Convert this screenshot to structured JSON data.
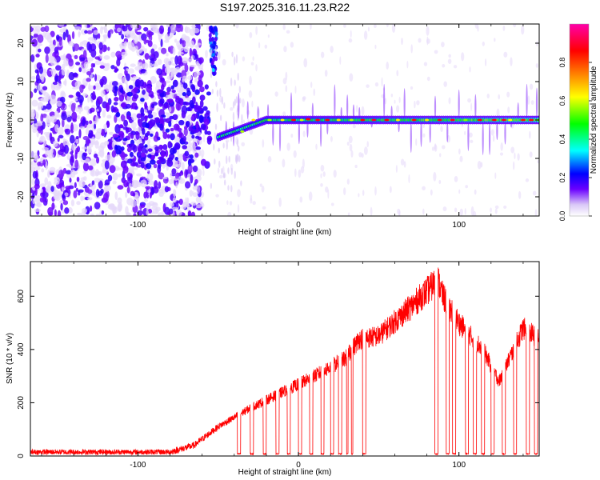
{
  "title": "S197.2025.316.11.23.R22",
  "chart_data": [
    {
      "type": "heatmap",
      "xlabel": "Height of straight line (km)",
      "ylabel": "Frequency (Hz)",
      "xlim": [
        -167,
        150
      ],
      "ylim": [
        -25,
        25
      ],
      "xticks": [
        -100,
        0,
        100
      ],
      "yticks": [
        -20,
        -10,
        0,
        10,
        20
      ],
      "xtick_labels": [
        "-100",
        "0",
        "100"
      ],
      "ytick_labels": [
        "-20",
        "-10",
        "0",
        "10",
        "20"
      ],
      "colorbar": {
        "label": "Normalized spectral amplitude",
        "range": [
          0,
          1
        ],
        "ticks": [
          0.0,
          0.2,
          0.4,
          0.6,
          0.8
        ],
        "tick_labels": [
          "0.0",
          "0.2",
          "0.4",
          "0.6",
          "0.8"
        ],
        "stops": [
          "#ffffff",
          "#d9c6f7",
          "#6a00ff",
          "#0000ff",
          "#00ffff",
          "#00ff00",
          "#ffff00",
          "#ff8000",
          "#ff0000",
          "#ff00aa"
        ]
      },
      "features": {
        "noise_region_km": [
          -167,
          -70
        ],
        "line_start_km": -50,
        "line_frequency_hz": 0,
        "high_freq_blob_km": -53,
        "high_freq_blob_hz": [
          12,
          24
        ]
      }
    },
    {
      "type": "line",
      "xlabel": "Height of straight line (km)",
      "ylabel": "SNR (10 * v/v)",
      "xlim": [
        -167,
        150
      ],
      "ylim": [
        0,
        730
      ],
      "xticks": [
        -100,
        0,
        100
      ],
      "yticks": [
        0,
        200,
        400,
        600
      ],
      "xtick_labels": [
        "-100",
        "0",
        "100"
      ],
      "ytick_labels": [
        "0",
        "200",
        "400",
        "600"
      ],
      "series_color": "#ff0000",
      "baseline_snr": 15,
      "trend": [
        {
          "x": -167,
          "y": 15
        },
        {
          "x": -80,
          "y": 15
        },
        {
          "x": -65,
          "y": 40
        },
        {
          "x": -50,
          "y": 110
        },
        {
          "x": -30,
          "y": 180
        },
        {
          "x": -10,
          "y": 240
        },
        {
          "x": 10,
          "y": 300
        },
        {
          "x": 30,
          "y": 370
        },
        {
          "x": 38,
          "y": 440
        },
        {
          "x": 50,
          "y": 450
        },
        {
          "x": 70,
          "y": 560
        },
        {
          "x": 87,
          "y": 660
        },
        {
          "x": 90,
          "y": 600
        },
        {
          "x": 100,
          "y": 500
        },
        {
          "x": 115,
          "y": 400
        },
        {
          "x": 125,
          "y": 280
        },
        {
          "x": 140,
          "y": 480
        },
        {
          "x": 150,
          "y": 440
        }
      ],
      "dropouts": [
        [
          -38,
          -36
        ],
        [
          -30,
          -28
        ],
        [
          -22,
          -20
        ],
        [
          -14,
          -12
        ],
        [
          -7,
          -5
        ],
        [
          0,
          2
        ],
        [
          7,
          9
        ],
        [
          14,
          16
        ],
        [
          20,
          22
        ],
        [
          25,
          27
        ],
        [
          30,
          31
        ],
        [
          33,
          34
        ],
        [
          40,
          42
        ],
        [
          85,
          87
        ],
        [
          92,
          94
        ],
        [
          96,
          98
        ],
        [
          104,
          106
        ],
        [
          109,
          111
        ],
        [
          114,
          116
        ],
        [
          120,
          122
        ],
        [
          127,
          129
        ],
        [
          134,
          136
        ],
        [
          142,
          144
        ],
        [
          147,
          149
        ]
      ]
    }
  ]
}
